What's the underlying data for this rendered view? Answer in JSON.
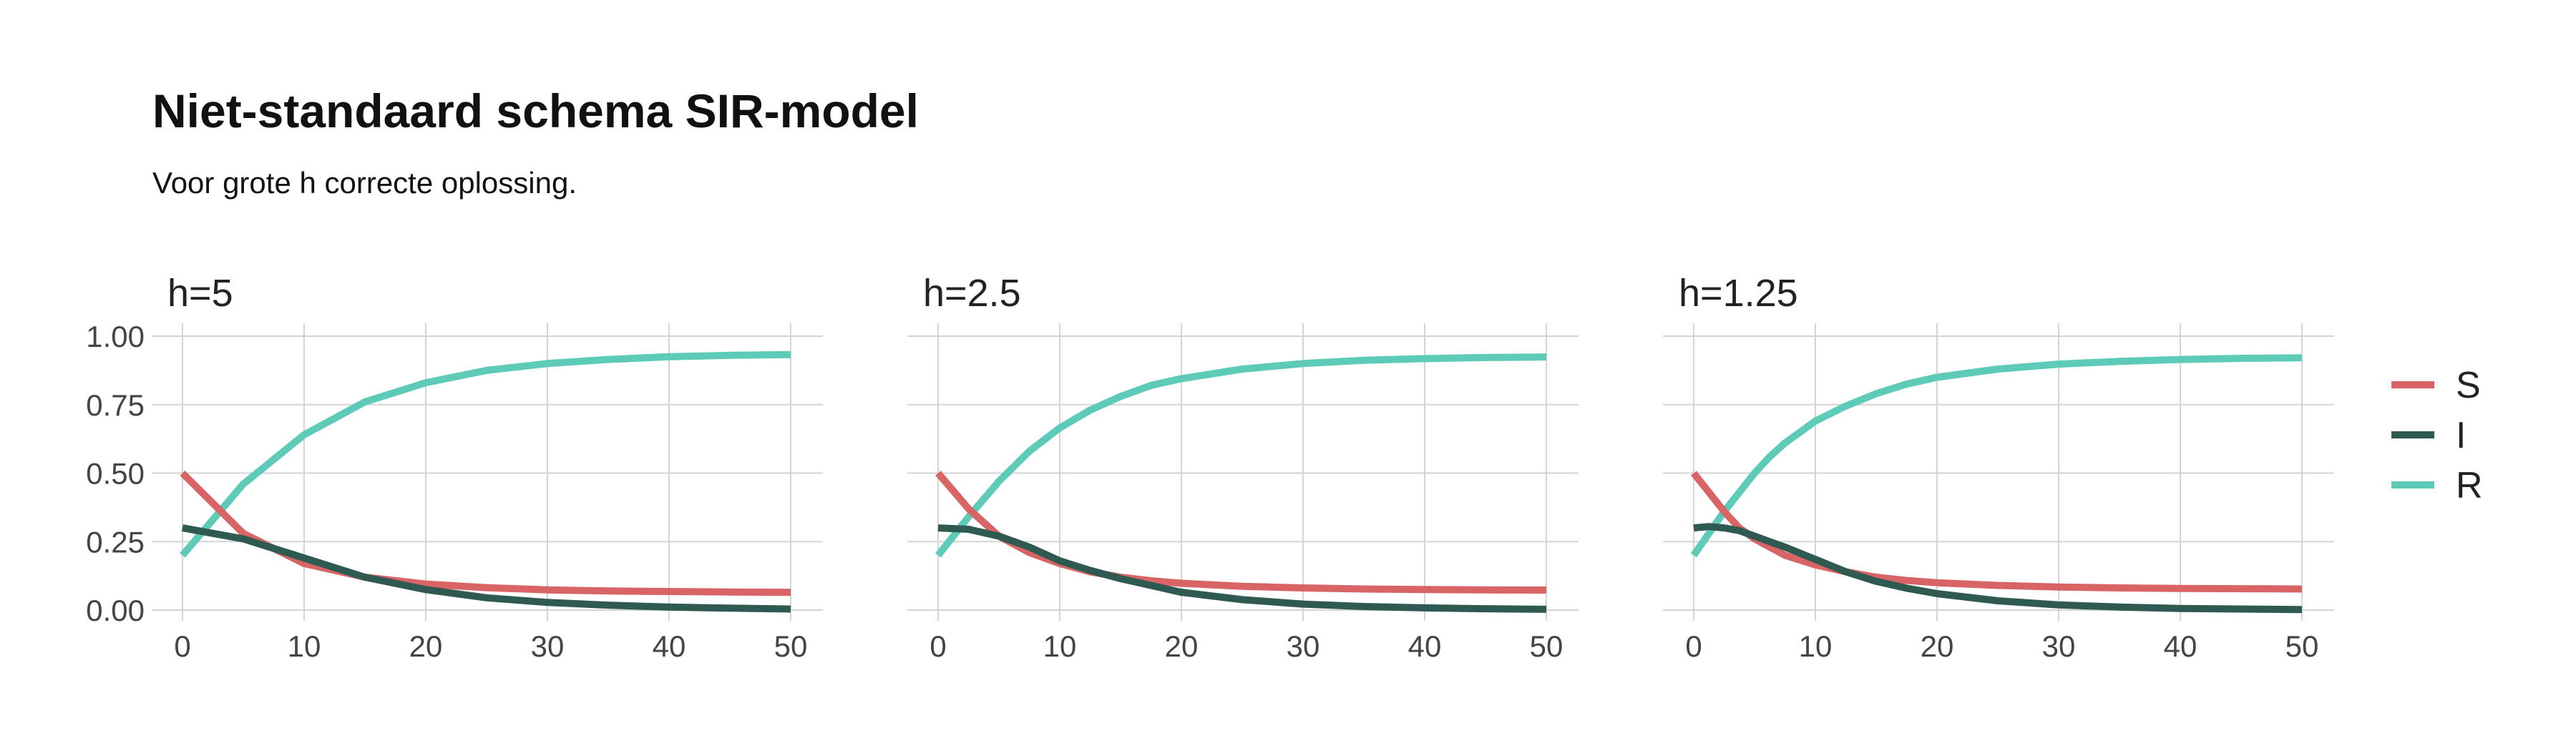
{
  "chart_data": {
    "type": "line",
    "title": "Niet-standaard schema SIR-model",
    "subtitle": "Voor grote h correcte oplossing.",
    "colors": {
      "S": "#d96466",
      "I": "#2f5a52",
      "R": "#5dcbb8"
    },
    "legend": {
      "position": "right",
      "entries": [
        {
          "key": "S",
          "label": "S"
        },
        {
          "key": "I",
          "label": "I"
        },
        {
          "key": "R",
          "label": "R"
        }
      ]
    },
    "xlim": [
      0,
      50
    ],
    "ylim": [
      0,
      1
    ],
    "x_ticks": [
      0,
      10,
      20,
      30,
      40,
      50
    ],
    "y_ticks": [
      0,
      0.25,
      0.5,
      0.75,
      1.0
    ],
    "y_tick_labels": [
      "0.00",
      "0.25",
      "0.50",
      "0.75",
      "1.00"
    ],
    "grid": true,
    "panels": [
      {
        "label": "h=5",
        "series": [
          {
            "key": "S",
            "x": [
              0,
              5,
              10,
              15,
              20,
              25,
              30,
              35,
              40,
              45,
              50
            ],
            "y": [
              0.5,
              0.28,
              0.17,
              0.12,
              0.095,
              0.082,
              0.074,
              0.07,
              0.068,
              0.066,
              0.065
            ]
          },
          {
            "key": "I",
            "x": [
              0,
              5,
              10,
              15,
              20,
              25,
              30,
              35,
              40,
              45,
              50
            ],
            "y": [
              0.3,
              0.26,
              0.19,
              0.12,
              0.075,
              0.045,
              0.028,
              0.018,
              0.011,
              0.007,
              0.004
            ]
          },
          {
            "key": "R",
            "x": [
              0,
              5,
              10,
              15,
              20,
              25,
              30,
              35,
              40,
              45,
              50
            ],
            "y": [
              0.2,
              0.46,
              0.64,
              0.76,
              0.83,
              0.875,
              0.9,
              0.915,
              0.925,
              0.93,
              0.933
            ]
          }
        ]
      },
      {
        "label": "h=2.5",
        "series": [
          {
            "key": "S",
            "x": [
              0,
              2.5,
              5,
              7.5,
              10,
              12.5,
              15,
              17.5,
              20,
              25,
              30,
              35,
              40,
              45,
              50
            ],
            "y": [
              0.5,
              0.37,
              0.27,
              0.21,
              0.17,
              0.14,
              0.12,
              0.107,
              0.098,
              0.087,
              0.081,
              0.077,
              0.075,
              0.074,
              0.073
            ]
          },
          {
            "key": "I",
            "x": [
              0,
              2.5,
              5,
              7.5,
              10,
              12.5,
              15,
              17.5,
              20,
              25,
              30,
              35,
              40,
              45,
              50
            ],
            "y": [
              0.3,
              0.295,
              0.27,
              0.23,
              0.18,
              0.145,
              0.115,
              0.09,
              0.065,
              0.038,
              0.022,
              0.013,
              0.008,
              0.005,
              0.003
            ]
          },
          {
            "key": "R",
            "x": [
              0,
              2.5,
              5,
              7.5,
              10,
              12.5,
              15,
              17.5,
              20,
              25,
              30,
              35,
              40,
              45,
              50
            ],
            "y": [
              0.2,
              0.34,
              0.47,
              0.58,
              0.665,
              0.73,
              0.78,
              0.82,
              0.845,
              0.88,
              0.9,
              0.912,
              0.918,
              0.922,
              0.924
            ]
          }
        ]
      },
      {
        "label": "h=1.25",
        "series": [
          {
            "key": "S",
            "x": [
              0,
              1.25,
              2.5,
              3.75,
              5,
              6.25,
              7.5,
              10,
              12.5,
              15,
              17.5,
              20,
              25,
              30,
              35,
              40,
              45,
              50
            ],
            "y": [
              0.5,
              0.43,
              0.36,
              0.3,
              0.26,
              0.23,
              0.2,
              0.165,
              0.14,
              0.12,
              0.108,
              0.1,
              0.09,
              0.084,
              0.081,
              0.079,
              0.078,
              0.077
            ]
          },
          {
            "key": "I",
            "x": [
              0,
              1.25,
              2.5,
              3.75,
              5,
              6.25,
              7.5,
              10,
              12.5,
              15,
              17.5,
              20,
              25,
              30,
              35,
              40,
              45,
              50
            ],
            "y": [
              0.3,
              0.305,
              0.3,
              0.29,
              0.27,
              0.25,
              0.23,
              0.185,
              0.14,
              0.105,
              0.08,
              0.06,
              0.034,
              0.019,
              0.011,
              0.006,
              0.004,
              0.002
            ]
          },
          {
            "key": "R",
            "x": [
              0,
              1.25,
              2.5,
              3.75,
              5,
              6.25,
              7.5,
              10,
              12.5,
              15,
              17.5,
              20,
              25,
              30,
              35,
              40,
              45,
              50
            ],
            "y": [
              0.2,
              0.28,
              0.36,
              0.43,
              0.5,
              0.56,
              0.61,
              0.69,
              0.745,
              0.79,
              0.825,
              0.85,
              0.88,
              0.898,
              0.908,
              0.915,
              0.919,
              0.921
            ]
          }
        ]
      }
    ]
  }
}
